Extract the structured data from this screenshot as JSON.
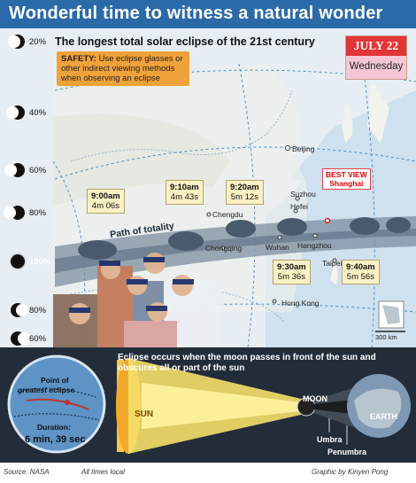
{
  "title": "Wonderful time to witness a natural wonder",
  "subtitle": "The longest total solar eclipse of the 21st century",
  "safety": {
    "label": "SAFETY:",
    "text": "Use eclipse glasses or other indirect viewing methods when observing an eclipse"
  },
  "date": {
    "top": "JULY 22",
    "bottom": "Wednesday"
  },
  "moon_phases": [
    "20%",
    "40%",
    "60%",
    "80%",
    "100%",
    "80%",
    "60%"
  ],
  "path_label": "Path of totality",
  "callouts": [
    {
      "time": "9:00am",
      "duration": "4m 06s"
    },
    {
      "time": "9:10am",
      "duration": "4m 43s"
    },
    {
      "time": "9:20am",
      "duration": "5m 12s"
    },
    {
      "time": "9:30am",
      "duration": "5m 36s"
    },
    {
      "time": "9:40am",
      "duration": "5m 56s"
    }
  ],
  "best_view": {
    "line1": "BEST VIEW",
    "line2": "Shanghai"
  },
  "cities": [
    "Beijing",
    "Chengdu",
    "Suzhou",
    "Hefei",
    "Chongqing",
    "Wuhan",
    "Hangzhou",
    "Taipei",
    "Hong Kong"
  ],
  "scale": "300 km",
  "bottom_text": "Eclipse occurs when the moon passes in front of the sun and obscures all or part of the sun",
  "globe": {
    "point_label_1": "Point of",
    "point_label_2": "greatest eclipse",
    "duration_label": "Duration:",
    "duration_value": "6 min, 39 sec"
  },
  "labels": {
    "sun": "SUN",
    "moon": "MOON",
    "earth": "EARTH",
    "umbra": "Umbra",
    "penumbra": "Penumbra"
  },
  "footer": {
    "source": "Source: NASA",
    "times": "All times local",
    "credit": "Graphic by Kinyen Pong"
  },
  "colors": {
    "title_bar": "#2b6aa8",
    "safety": "#f0a23a",
    "date_red": "#e33436",
    "bottom_bg": "#232d3a",
    "callout_bg": "#fbf1c5"
  }
}
